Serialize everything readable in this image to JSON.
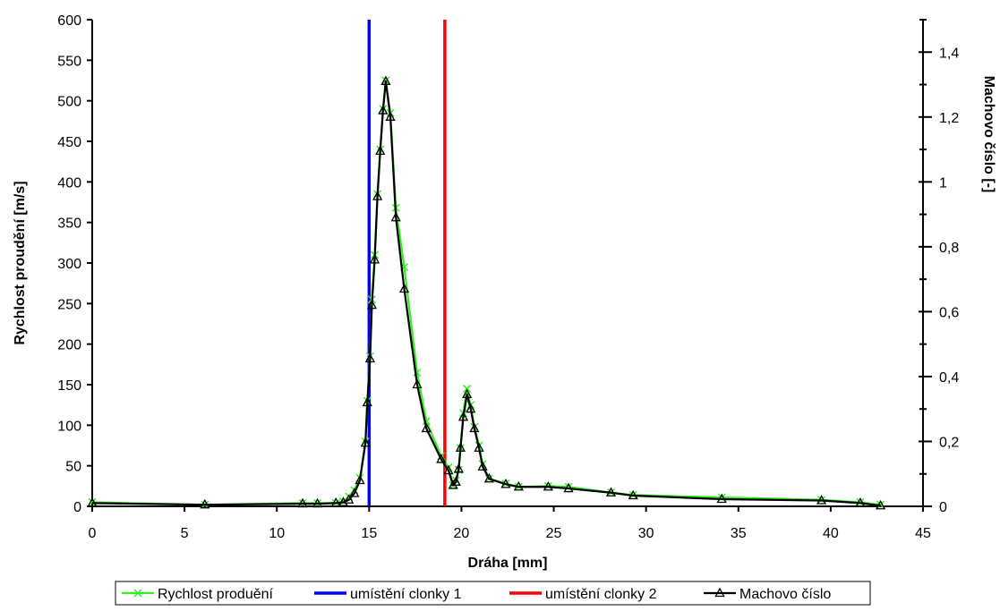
{
  "chart_data": {
    "type": "line",
    "title": "",
    "xlabel": "Dráha [mm]",
    "ylabel": "Rychlost proudění [m/s]",
    "y2label": "Machovo číslo [-]",
    "xlim": [
      0,
      45
    ],
    "ylim": [
      0,
      600
    ],
    "y2lim": [
      0,
      1.5
    ],
    "xticks": [
      "0",
      "5",
      "10",
      "15",
      "20",
      "25",
      "30",
      "35",
      "40",
      "45"
    ],
    "yticks": [
      "0",
      "50",
      "100",
      "150",
      "200",
      "250",
      "300",
      "350",
      "400",
      "450",
      "500",
      "550",
      "600"
    ],
    "y2ticks": [
      "0",
      "0,2",
      "0,4",
      "0,6",
      "0,8",
      "1",
      "1,2",
      "1,4"
    ],
    "grid": false,
    "legend_position": "bottom",
    "series": [
      {
        "name": "Rychlost produění",
        "axis": "left",
        "color": "#33ee22",
        "marker": "x",
        "x": [
          0,
          6.1,
          11.4,
          12.2,
          13.2,
          13.6,
          13.9,
          14.2,
          14.5,
          14.8,
          14.9,
          15.05,
          15.15,
          15.3,
          15.45,
          15.6,
          15.75,
          15.9,
          16.15,
          16.45,
          16.9,
          17.6,
          18.1,
          18.9,
          19.3,
          19.55,
          19.7,
          19.85,
          19.95,
          20.1,
          20.3,
          20.5,
          20.7,
          20.95,
          21.15,
          21.5,
          22.4,
          23.1,
          24.7,
          25.8,
          28.1,
          29.3,
          34.1,
          39.5,
          41.6,
          42.7
        ],
        "values": [
          5,
          2,
          4,
          4,
          4,
          6,
          12,
          20,
          35,
          80,
          130,
          185,
          255,
          310,
          385,
          440,
          490,
          525,
          485,
          368,
          295,
          165,
          105,
          62,
          48,
          26,
          32,
          45,
          72,
          115,
          145,
          125,
          98,
          75,
          52,
          34,
          28,
          24,
          25,
          24,
          17,
          14,
          11,
          8,
          5,
          2
        ]
      },
      {
        "name": "umístění clonky 1",
        "axis": "left",
        "color": "#0000ff",
        "x": [
          15,
          15
        ],
        "values": [
          0,
          600
        ]
      },
      {
        "name": "umístění clonky 2",
        "axis": "left",
        "color": "#ff0000",
        "x": [
          19.1,
          19.1
        ],
        "values": [
          0,
          600
        ]
      },
      {
        "name": "Machovo číslo",
        "axis": "right",
        "color": "#000000",
        "marker": "triangle",
        "x": [
          0,
          6.1,
          11.4,
          12.2,
          13.2,
          13.6,
          13.9,
          14.2,
          14.5,
          14.8,
          14.9,
          15.05,
          15.15,
          15.3,
          15.45,
          15.6,
          15.75,
          15.9,
          16.15,
          16.45,
          16.9,
          17.6,
          18.1,
          18.9,
          19.3,
          19.55,
          19.7,
          19.85,
          19.95,
          20.1,
          20.3,
          20.5,
          20.7,
          20.95,
          21.15,
          21.5,
          22.4,
          23.1,
          24.7,
          25.8,
          28.1,
          29.3,
          34.1,
          39.5,
          41.6,
          42.7
        ],
        "values": [
          0.01,
          0.005,
          0.008,
          0.008,
          0.01,
          0.012,
          0.02,
          0.04,
          0.08,
          0.195,
          0.32,
          0.455,
          0.62,
          0.76,
          0.955,
          1.095,
          1.22,
          1.31,
          1.2,
          0.89,
          0.67,
          0.375,
          0.24,
          0.145,
          0.11,
          0.065,
          0.075,
          0.115,
          0.18,
          0.275,
          0.345,
          0.3,
          0.24,
          0.18,
          0.122,
          0.085,
          0.068,
          0.06,
          0.06,
          0.055,
          0.042,
          0.033,
          0.022,
          0.018,
          0.01,
          0.002
        ]
      }
    ]
  }
}
